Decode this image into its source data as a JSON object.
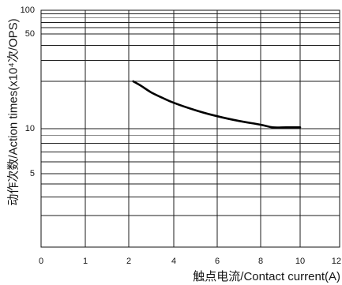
{
  "chart_data": {
    "type": "line",
    "xlabel": "触点电流/Contact current(A)",
    "ylabel": "动作次数/Action times(x10⁴次/OPS)",
    "x_ticks": [
      "0",
      "1",
      "2",
      "4",
      "6",
      "8",
      "10",
      "12"
    ],
    "y_ticks": [
      "100",
      "50",
      "10",
      "5"
    ],
    "xlim": [
      0,
      12
    ],
    "ylim": [
      1,
      100
    ],
    "yscale": "log",
    "grid": true,
    "series": [
      {
        "x": [
          2.2,
          2.5,
          3,
          3.5,
          4,
          5,
          6,
          7,
          8,
          8.6,
          9.3,
          10
        ],
        "y": [
          20,
          18.9,
          17,
          15.7,
          14.6,
          13.1,
          12,
          11.2,
          10.6,
          10.2,
          10.2,
          10.2
        ]
      }
    ]
  },
  "colors": {
    "series_line": "#000000",
    "grid": "#1e1e1e",
    "background": "#ffffff"
  }
}
